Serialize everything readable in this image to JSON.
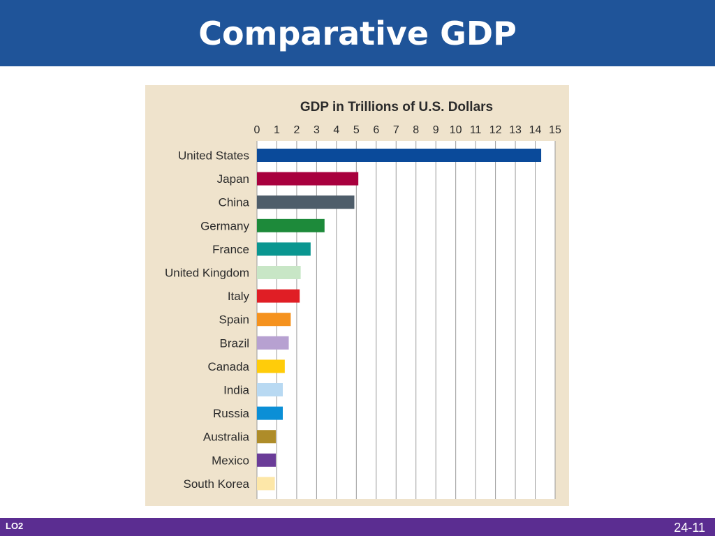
{
  "header": {
    "title": "Comparative GDP"
  },
  "footer": {
    "lo_label": "LO2",
    "page_number": "24-11"
  },
  "chart_data": {
    "type": "bar",
    "orientation": "horizontal",
    "title": "GDP in Trillions of U.S. Dollars",
    "xlim": [
      0,
      15
    ],
    "ticks": [
      "0",
      "1",
      "2",
      "3",
      "4",
      "5",
      "6",
      "7",
      "8",
      "9",
      "10",
      "11",
      "12",
      "13",
      "14",
      "15"
    ],
    "grid": true,
    "categories": [
      "United States",
      "Japan",
      "China",
      "Germany",
      "France",
      "United Kingdom",
      "Italy",
      "Spain",
      "Brazil",
      "Canada",
      "India",
      "Russia",
      "Australia",
      "Mexico",
      "South Korea"
    ],
    "values": [
      14.3,
      5.1,
      4.9,
      3.4,
      2.7,
      2.2,
      2.15,
      1.7,
      1.6,
      1.4,
      1.3,
      1.3,
      0.95,
      0.95,
      0.9
    ],
    "colors": [
      "#0a4a9a",
      "#a8003e",
      "#4e5d6a",
      "#1d8a3a",
      "#0a9690",
      "#c8e6c6",
      "#e01e25",
      "#f5921e",
      "#b7a1d1",
      "#ffcc0a",
      "#b8d9f2",
      "#0b8fd6",
      "#ae8c29",
      "#6a3c98",
      "#fde7a8"
    ]
  }
}
